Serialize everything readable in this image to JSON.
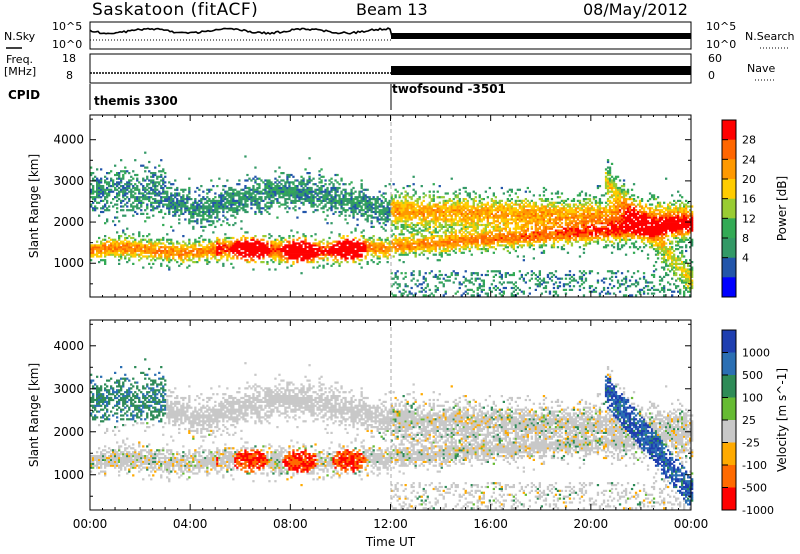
{
  "header": {
    "station": "Saskatoon (fitACF)",
    "beam": "Beam 13",
    "date": "08/May/2012"
  },
  "strip": {
    "nsky_label": "N.Sky",
    "nsearch_label": "N.Search",
    "nsky_ticks": [
      "10^5",
      "10^0"
    ],
    "nsearch_ticks": [
      "10^5",
      "10^0"
    ],
    "freq_label_1": "Freq.",
    "freq_label_2": "[MHz]",
    "freq_ticks": [
      "18",
      "8"
    ],
    "nave_label": "Nave",
    "nave_ticks": [
      "60",
      "0"
    ],
    "cpid_label": "CPID",
    "cpid_segments": [
      {
        "label": "themis 3300",
        "start_hour": 0
      },
      {
        "label": "twofsound -3501",
        "start_hour": 12
      }
    ]
  },
  "chart_data": [
    {
      "type": "heatmap",
      "title": "",
      "xlabel": "",
      "ylabel": "Slant Range [km]",
      "xlim": [
        0,
        24
      ],
      "ylim": [
        180,
        4600
      ],
      "yticks": [
        1000,
        2000,
        3000,
        4000
      ],
      "colorbar": {
        "label": "Power [dB]",
        "ticks": [
          28,
          24,
          20,
          16,
          12,
          8,
          4
        ],
        "colors": [
          "#ff0000",
          "#ff6600",
          "#ff9900",
          "#ffcc00",
          "#99cc33",
          "#33aa55",
          "#339966",
          "#2255aa",
          "#0000ff"
        ]
      },
      "features": [
        {
          "name": "ionospheric band",
          "hour_range": [
            0,
            24
          ],
          "range_km_approx": [
            1000,
            2800
          ]
        },
        {
          "name": "strong echoes",
          "hour_range": [
            5,
            11
          ],
          "range_km_approx": [
            900,
            1600
          ]
        }
      ]
    },
    {
      "type": "heatmap",
      "title": "",
      "xlabel": "Time UT",
      "ylabel": "Slant Range [km]",
      "xlim": [
        0,
        24
      ],
      "ylim": [
        180,
        4600
      ],
      "yticks": [
        1000,
        2000,
        3000,
        4000
      ],
      "xticks": [
        "00:00",
        "04:00",
        "08:00",
        "12:00",
        "16:00",
        "20:00",
        "00:00"
      ],
      "colorbar": {
        "label": "Velocity [m s^-1]",
        "ticks": [
          1000,
          500,
          100,
          25,
          -25,
          -100,
          -500,
          -1000
        ],
        "colors": [
          "#1f3fb0",
          "#2b6fb3",
          "#2e8b57",
          "#66bb33",
          "#c8c8c8",
          "#ffaa00",
          "#ff6a00",
          "#ff0000"
        ]
      }
    }
  ],
  "colors": {
    "axis": "#000000",
    "ground_scatter": "#c8c8c8",
    "marker_line": "#aaaaaa"
  }
}
